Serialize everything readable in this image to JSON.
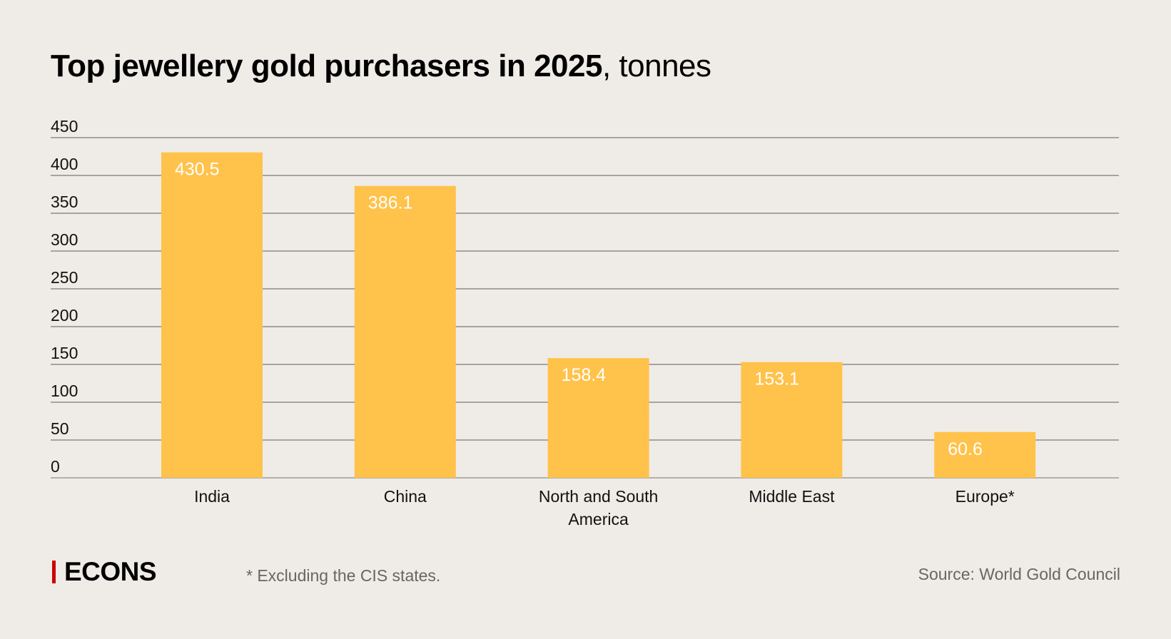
{
  "chart_data": {
    "type": "bar",
    "title": "Top jewellery gold purchasers in 2025",
    "title_unit": ", tonnes",
    "categories": [
      "India",
      "China",
      "North and South America",
      "Middle East",
      "Europe*"
    ],
    "category_lines": [
      [
        "India"
      ],
      [
        "China"
      ],
      [
        "North and South",
        "America"
      ],
      [
        "Middle East"
      ],
      [
        "Europe*"
      ]
    ],
    "values": [
      430.5,
      386.1,
      158.4,
      153.1,
      60.6
    ],
    "data_labels": [
      "430.5",
      "386.1",
      "158.4",
      "153.1",
      "60.6"
    ],
    "ylim": [
      0,
      450
    ],
    "yticks": [
      0,
      50,
      100,
      150,
      200,
      250,
      300,
      350,
      400,
      450
    ],
    "grid": true,
    "xlabel": "",
    "ylabel": "",
    "colors": {
      "bar": "#ffc24a",
      "background": "#efece7",
      "grid": "#7a7a7a",
      "baseline": "#b0b0b0"
    }
  },
  "footer": {
    "logo": "ECONS",
    "logo_accent": "#cc0000",
    "note": "* Excluding the CIS states.",
    "source": "Source: World Gold Council"
  }
}
